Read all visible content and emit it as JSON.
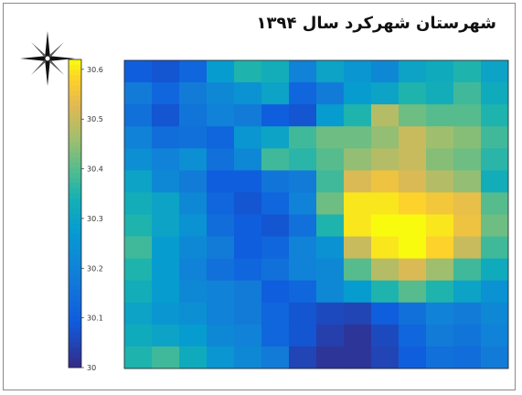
{
  "title": "شهرستان شهرکرد سال ۱۳۹۴",
  "icons": {
    "compass": "north-arrow-compass-icon"
  },
  "chart_data": {
    "type": "heatmap",
    "title": "شهرستان شهرکرد سال ۱۳۹۴",
    "colormap": "parula",
    "zlim": [
      30.0,
      30.62
    ],
    "colorbar": {
      "ticks": [
        30,
        30.1,
        30.2,
        30.3,
        30.4,
        30.5,
        30.6
      ],
      "tick_labels": [
        "30",
        "30.1",
        "30.2",
        "30.3",
        "30.4",
        "30.5",
        "30.6"
      ],
      "location": "left"
    },
    "grid": false,
    "rows": 14,
    "cols": 14,
    "values": [
      [
        30.1,
        30.08,
        30.12,
        30.28,
        30.35,
        30.33,
        30.2,
        30.3,
        30.26,
        30.22,
        30.3,
        30.32,
        30.35,
        30.3
      ],
      [
        30.18,
        30.12,
        30.18,
        30.22,
        30.25,
        30.3,
        30.12,
        30.18,
        30.28,
        30.3,
        30.35,
        30.33,
        30.38,
        30.32
      ],
      [
        30.15,
        30.08,
        30.16,
        30.2,
        30.18,
        30.1,
        30.08,
        30.28,
        30.35,
        30.48,
        30.42,
        30.4,
        30.4,
        30.35
      ],
      [
        30.2,
        30.14,
        30.15,
        30.12,
        30.26,
        30.3,
        30.38,
        30.42,
        30.42,
        30.45,
        30.5,
        30.46,
        30.44,
        30.38
      ],
      [
        30.24,
        30.2,
        30.24,
        30.15,
        30.22,
        30.38,
        30.36,
        30.4,
        30.45,
        30.48,
        30.5,
        30.44,
        30.42,
        30.36
      ],
      [
        30.3,
        30.22,
        30.18,
        30.1,
        30.1,
        30.16,
        30.18,
        30.38,
        30.52,
        30.55,
        30.52,
        30.48,
        30.45,
        30.33
      ],
      [
        30.33,
        30.3,
        30.22,
        30.12,
        30.08,
        30.12,
        30.2,
        30.42,
        30.6,
        30.6,
        30.58,
        30.56,
        30.54,
        30.4
      ],
      [
        30.35,
        30.3,
        30.25,
        30.14,
        30.1,
        30.08,
        30.15,
        30.35,
        30.6,
        30.62,
        30.62,
        30.6,
        30.55,
        30.42
      ],
      [
        30.38,
        30.28,
        30.22,
        30.18,
        30.1,
        30.12,
        30.2,
        30.25,
        30.5,
        30.6,
        30.62,
        30.58,
        30.5,
        30.38
      ],
      [
        30.35,
        30.28,
        30.2,
        30.15,
        30.12,
        30.15,
        30.2,
        30.22,
        30.4,
        30.48,
        30.52,
        30.46,
        30.38,
        30.32
      ],
      [
        30.33,
        30.28,
        30.22,
        30.2,
        30.18,
        30.1,
        30.12,
        30.22,
        30.28,
        30.35,
        30.4,
        30.35,
        30.3,
        30.25
      ],
      [
        30.3,
        30.26,
        30.24,
        30.2,
        30.18,
        30.12,
        30.08,
        30.06,
        30.05,
        30.1,
        30.15,
        30.2,
        30.18,
        30.22
      ],
      [
        30.32,
        30.3,
        30.28,
        30.22,
        30.2,
        30.12,
        30.08,
        30.04,
        30.02,
        30.06,
        30.12,
        30.18,
        30.16,
        30.2
      ],
      [
        30.35,
        30.38,
        30.32,
        30.26,
        30.22,
        30.18,
        30.05,
        30.02,
        30.02,
        30.05,
        30.1,
        30.15,
        30.14,
        30.18
      ]
    ]
  }
}
